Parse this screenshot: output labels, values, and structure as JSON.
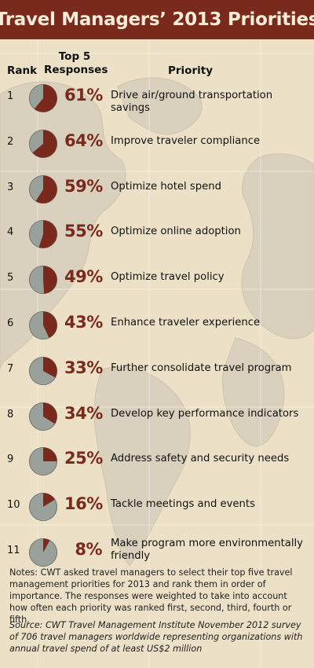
{
  "title": "Travel Managers’ 2013 Priorities",
  "headers": {
    "rank": "Rank",
    "top5_line1": "Top 5",
    "top5_line2": "Responses",
    "priority": "Priority"
  },
  "colors": {
    "accent": "#7a2a1c",
    "pie_rest": "#9aa19b",
    "background": "#ece0c6",
    "map_land": "#d6cdb8"
  },
  "chart_data": {
    "type": "table",
    "title": "Travel Managers’ 2013 Priorities",
    "columns": [
      "Rank",
      "Top 5 Responses",
      "Priority"
    ],
    "rows": [
      {
        "rank": "1",
        "value": 61,
        "label": "61%",
        "priority": "Drive air/ground transportation savings"
      },
      {
        "rank": "2",
        "value": 64,
        "label": "64%",
        "priority": "Improve traveler compliance"
      },
      {
        "rank": "3",
        "value": 59,
        "label": "59%",
        "priority": "Optimize hotel spend"
      },
      {
        "rank": "4",
        "value": 55,
        "label": "55%",
        "priority": "Optimize online adoption"
      },
      {
        "rank": "5",
        "value": 49,
        "label": "49%",
        "priority": "Optimize travel policy"
      },
      {
        "rank": "6",
        "value": 43,
        "label": "43%",
        "priority": "Enhance traveler experience"
      },
      {
        "rank": "7",
        "value": 33,
        "label": "33%",
        "priority": "Further consolidate travel program"
      },
      {
        "rank": "8",
        "value": 34,
        "label": "34%",
        "priority": "Develop key performance indicators"
      },
      {
        "rank": "9",
        "value": 25,
        "label": "25%",
        "priority": "Address safety and security needs"
      },
      {
        "rank": "10",
        "value": 16,
        "label": "16%",
        "priority": "Tackle meetings and events"
      },
      {
        "rank": "11",
        "value": 8,
        "label": "8%",
        "priority": "Make program more environmentally friendly"
      }
    ]
  },
  "notes": "Notes: CWT asked travel managers to select their top five travel management priorities for 2013 and rank them in order of importance. The responses were weighted to take into account how often each priority was ranked first, second, third, fourth or fifth.",
  "source": "Source: CWT Travel Management Institute November 2012 survey of 706 travel managers worldwide representing organizations with annual travel spend of at least US$2 million"
}
